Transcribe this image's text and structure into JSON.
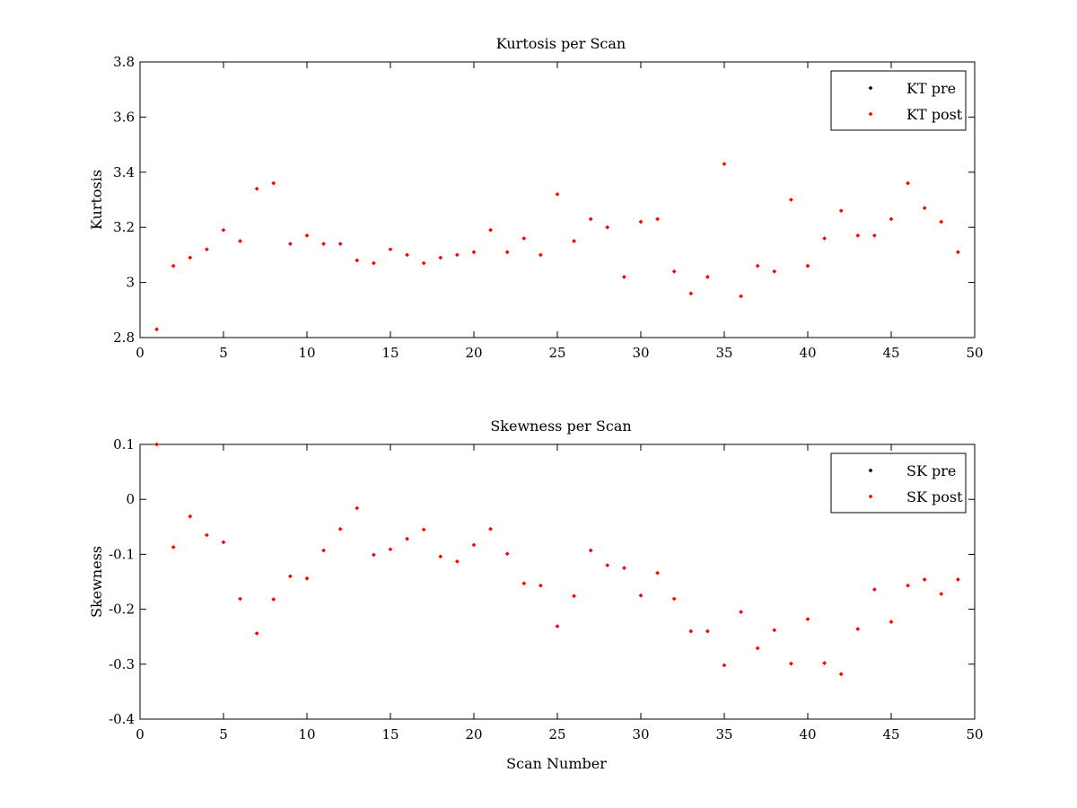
{
  "chart_data": [
    {
      "type": "scatter",
      "title": "Kurtosis per Scan",
      "xlabel": "",
      "ylabel": "Kurtosis",
      "xlim": [
        0,
        50
      ],
      "ylim": [
        2.8,
        3.8
      ],
      "xticks": [
        0,
        5,
        10,
        15,
        20,
        25,
        30,
        35,
        40,
        45,
        50
      ],
      "yticks": [
        2.8,
        3,
        3.2,
        3.4,
        3.6,
        3.8
      ],
      "xtick_labels": [
        "0",
        "5",
        "10",
        "15",
        "20",
        "25",
        "30",
        "35",
        "40",
        "45",
        "50"
      ],
      "ytick_labels": [
        "2.8",
        "3",
        "3.2",
        "3.4",
        "3.6",
        "3.8"
      ],
      "grid": false,
      "legend_position": "top-right",
      "series": [
        {
          "name": "KT pre",
          "color": "#000000",
          "x": [],
          "y": []
        },
        {
          "name": "KT post",
          "color": "#ff0000",
          "x": [
            1,
            2,
            3,
            4,
            5,
            6,
            7,
            8,
            9,
            10,
            11,
            12,
            13,
            14,
            15,
            16,
            17,
            18,
            19,
            20,
            21,
            22,
            23,
            24,
            25,
            26,
            27,
            28,
            29,
            30,
            31,
            32,
            33,
            34,
            35,
            36,
            37,
            38,
            39,
            40,
            41,
            42,
            43,
            44,
            45,
            46,
            47,
            48,
            49
          ],
          "y": [
            2.83,
            3.06,
            3.09,
            3.12,
            3.19,
            3.15,
            3.34,
            3.36,
            3.14,
            3.17,
            3.14,
            3.14,
            3.08,
            3.07,
            3.12,
            3.1,
            3.07,
            3.09,
            3.1,
            3.11,
            3.19,
            3.11,
            3.16,
            3.1,
            3.32,
            3.15,
            3.23,
            3.2,
            3.02,
            3.22,
            3.23,
            3.04,
            2.96,
            3.02,
            3.43,
            2.95,
            3.06,
            3.04,
            3.3,
            3.06,
            3.16,
            3.26,
            3.17,
            3.17,
            3.23,
            3.36,
            3.27,
            3.22,
            3.11
          ]
        }
      ]
    },
    {
      "type": "scatter",
      "title": "Skewness per Scan",
      "xlabel": "Scan Number",
      "ylabel": "Skewness",
      "xlim": [
        0,
        50
      ],
      "ylim": [
        -0.4,
        0.1
      ],
      "xticks": [
        0,
        5,
        10,
        15,
        20,
        25,
        30,
        35,
        40,
        45,
        50
      ],
      "yticks": [
        -0.4,
        -0.3,
        -0.2,
        -0.1,
        0,
        0.1
      ],
      "xtick_labels": [
        "0",
        "5",
        "10",
        "15",
        "20",
        "25",
        "30",
        "35",
        "40",
        "45",
        "50"
      ],
      "ytick_labels": [
        "-0.4",
        "-0.3",
        "-0.2",
        "-0.1",
        "0",
        "0.1"
      ],
      "grid": false,
      "legend_position": "top-right",
      "series": [
        {
          "name": "SK pre",
          "color": "#000000",
          "x": [],
          "y": []
        },
        {
          "name": "SK post",
          "color": "#ff0000",
          "x": [
            1,
            2,
            3,
            4,
            5,
            6,
            7,
            8,
            9,
            10,
            11,
            12,
            13,
            14,
            15,
            16,
            17,
            18,
            19,
            20,
            21,
            22,
            23,
            24,
            25,
            26,
            27,
            28,
            29,
            30,
            31,
            32,
            33,
            34,
            35,
            36,
            37,
            38,
            39,
            40,
            41,
            42,
            43,
            44,
            45,
            46,
            47,
            48,
            49
          ],
          "y": [
            0.1,
            -0.087,
            -0.031,
            -0.065,
            -0.078,
            -0.181,
            -0.244,
            -0.182,
            -0.14,
            -0.144,
            -0.093,
            -0.054,
            -0.016,
            -0.101,
            -0.091,
            -0.072,
            -0.055,
            -0.104,
            -0.113,
            -0.083,
            -0.054,
            -0.099,
            -0.153,
            -0.157,
            -0.231,
            -0.176,
            -0.093,
            -0.12,
            -0.125,
            -0.175,
            -0.134,
            -0.181,
            -0.24,
            -0.24,
            -0.302,
            -0.205,
            -0.271,
            -0.238,
            -0.299,
            -0.218,
            -0.298,
            -0.318,
            -0.236,
            -0.164,
            -0.223,
            -0.157,
            -0.146,
            -0.172,
            -0.146
          ]
        }
      ]
    }
  ]
}
